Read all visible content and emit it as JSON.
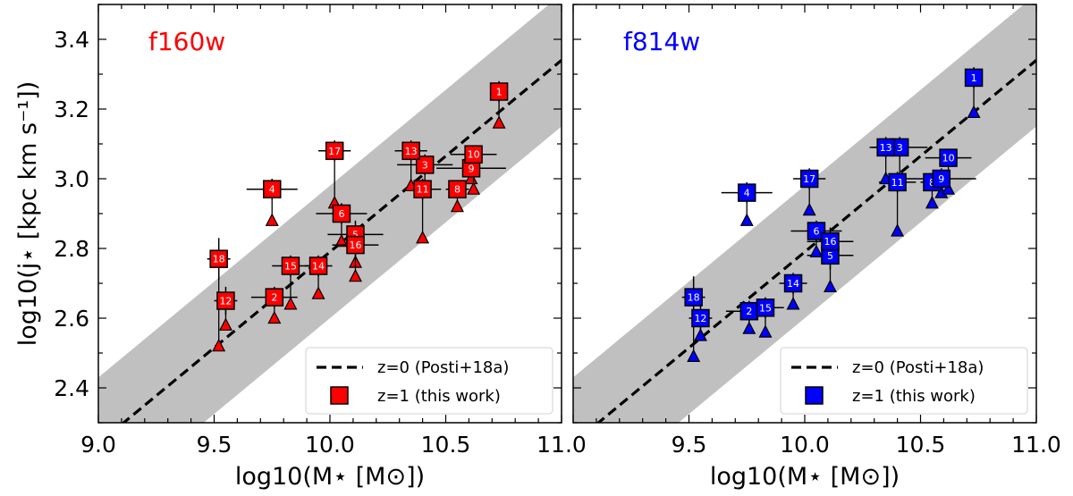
{
  "chart_data": {
    "type": "scatter",
    "ylabel": "log10(j⋆ [kpc km s⁻¹])",
    "xlabel": "log10(M⋆ [M⊙])",
    "xlim": [
      9.0,
      11.0
    ],
    "ylim": [
      2.3,
      3.5
    ],
    "x_ticks": [
      "9.0",
      "9.5",
      "10.0",
      "10.5",
      "11.0"
    ],
    "x_ticks_right": [
      "",
      "9.5",
      "10.0",
      "10.5",
      "11.0"
    ],
    "y_ticks": [
      "2.4",
      "2.6",
      "2.8",
      "3.0",
      "3.2",
      "3.4"
    ],
    "relation": {
      "slope": 0.55,
      "intercept_at_10": 2.79,
      "scatter_dex": 0.19
    },
    "legend": {
      "line_label": "z=0 (Posti+18a)",
      "point_label": "z=1 (this work)",
      "placement": "lower-right"
    },
    "panels": [
      {
        "title": "f160w",
        "color": "#ff0000",
        "points": [
          {
            "id": "1",
            "x": 10.73,
            "y": 3.25,
            "yerr": 0.03,
            "xerr": 0.0,
            "y0": 3.16
          },
          {
            "id": "2",
            "x": 9.76,
            "y": 2.66,
            "yerr": 0.03,
            "xerr": 0.1,
            "y0": 2.6
          },
          {
            "id": "3",
            "x": 10.41,
            "y": 3.04,
            "yerr": 0.03,
            "xerr": 0.12,
            "y0": 2.98
          },
          {
            "id": "4",
            "x": 9.75,
            "y": 2.97,
            "yerr": 0.03,
            "xerr": 0.11,
            "y0": 2.88
          },
          {
            "id": "5",
            "x": 10.11,
            "y": 2.84,
            "yerr": 0.04,
            "xerr": 0.12,
            "y0": 2.76
          },
          {
            "id": "6",
            "x": 10.05,
            "y": 2.9,
            "yerr": 0.03,
            "xerr": 0.11,
            "y0": 2.82
          },
          {
            "id": "8",
            "x": 10.55,
            "y": 2.97,
            "yerr": 0.02,
            "xerr": 0.05,
            "y0": 2.92
          },
          {
            "id": "9",
            "x": 10.61,
            "y": 3.03,
            "yerr": 0.03,
            "xerr": 0.15,
            "y0": 3.0
          },
          {
            "id": "10",
            "x": 10.62,
            "y": 3.07,
            "yerr": 0.02,
            "xerr": 0.1,
            "y0": 2.97
          },
          {
            "id": "11",
            "x": 10.4,
            "y": 2.97,
            "yerr": 0.03,
            "xerr": 0.08,
            "y0": 2.83
          },
          {
            "id": "12",
            "x": 9.55,
            "y": 2.65,
            "yerr": 0.04,
            "xerr": 0.05,
            "y0": 2.58
          },
          {
            "id": "13",
            "x": 10.35,
            "y": 3.08,
            "yerr": 0.03,
            "xerr": 0.07,
            "y0": 2.98
          },
          {
            "id": "14",
            "x": 9.95,
            "y": 2.75,
            "yerr": 0.03,
            "xerr": 0.06,
            "y0": 2.67
          },
          {
            "id": "15",
            "x": 9.83,
            "y": 2.75,
            "yerr": 0.03,
            "xerr": 0.08,
            "y0": 2.64
          },
          {
            "id": "16",
            "x": 10.11,
            "y": 2.81,
            "yerr": 0.04,
            "xerr": 0.1,
            "y0": 2.72
          },
          {
            "id": "17",
            "x": 10.02,
            "y": 3.08,
            "yerr": 0.03,
            "xerr": 0.07,
            "y0": 2.93
          },
          {
            "id": "18",
            "x": 9.52,
            "y": 2.77,
            "yerr": 0.06,
            "xerr": 0.05,
            "y0": 2.52
          }
        ]
      },
      {
        "title": "f814w",
        "color": "#0000ff",
        "points": [
          {
            "id": "1",
            "x": 10.73,
            "y": 3.29,
            "yerr": 0.03,
            "xerr": 0.0,
            "y0": 3.19
          },
          {
            "id": "2",
            "x": 9.76,
            "y": 2.62,
            "yerr": 0.03,
            "xerr": 0.1,
            "y0": 2.57
          },
          {
            "id": "3",
            "x": 10.41,
            "y": 3.09,
            "yerr": 0.03,
            "xerr": 0.12,
            "y0": 3.0
          },
          {
            "id": "4",
            "x": 9.75,
            "y": 2.96,
            "yerr": 0.03,
            "xerr": 0.11,
            "y0": 2.88
          },
          {
            "id": "5",
            "x": 10.11,
            "y": 2.78,
            "yerr": 0.04,
            "xerr": 0.1,
            "y0": 2.69
          },
          {
            "id": "6",
            "x": 10.05,
            "y": 2.85,
            "yerr": 0.03,
            "xerr": 0.11,
            "y0": 2.79
          },
          {
            "id": "8",
            "x": 10.55,
            "y": 2.99,
            "yerr": 0.02,
            "xerr": 0.05,
            "y0": 2.93
          },
          {
            "id": "9",
            "x": 10.59,
            "y": 3.0,
            "yerr": 0.03,
            "xerr": 0.15,
            "y0": 2.96
          },
          {
            "id": "10",
            "x": 10.62,
            "y": 3.06,
            "yerr": 0.02,
            "xerr": 0.1,
            "y0": 2.97
          },
          {
            "id": "11",
            "x": 10.4,
            "y": 2.99,
            "yerr": 0.03,
            "xerr": 0.08,
            "y0": 2.85
          },
          {
            "id": "12",
            "x": 9.55,
            "y": 2.6,
            "yerr": 0.04,
            "xerr": 0.05,
            "y0": 2.55
          },
          {
            "id": "13",
            "x": 10.35,
            "y": 3.09,
            "yerr": 0.03,
            "xerr": 0.07,
            "y0": 3.0
          },
          {
            "id": "14",
            "x": 9.95,
            "y": 2.7,
            "yerr": 0.03,
            "xerr": 0.06,
            "y0": 2.64
          },
          {
            "id": "15",
            "x": 9.83,
            "y": 2.63,
            "yerr": 0.03,
            "xerr": 0.08,
            "y0": 2.56
          },
          {
            "id": "16",
            "x": 10.11,
            "y": 2.82,
            "yerr": 0.04,
            "xerr": 0.1,
            "y0": 2.8
          },
          {
            "id": "17",
            "x": 10.02,
            "y": 3.0,
            "yerr": 0.03,
            "xerr": 0.07,
            "y0": 2.91
          },
          {
            "id": "18",
            "x": 9.52,
            "y": 2.66,
            "yerr": 0.06,
            "xerr": 0.05,
            "y0": 2.49
          }
        ]
      }
    ],
    "band_color": "#c0c0c0"
  }
}
